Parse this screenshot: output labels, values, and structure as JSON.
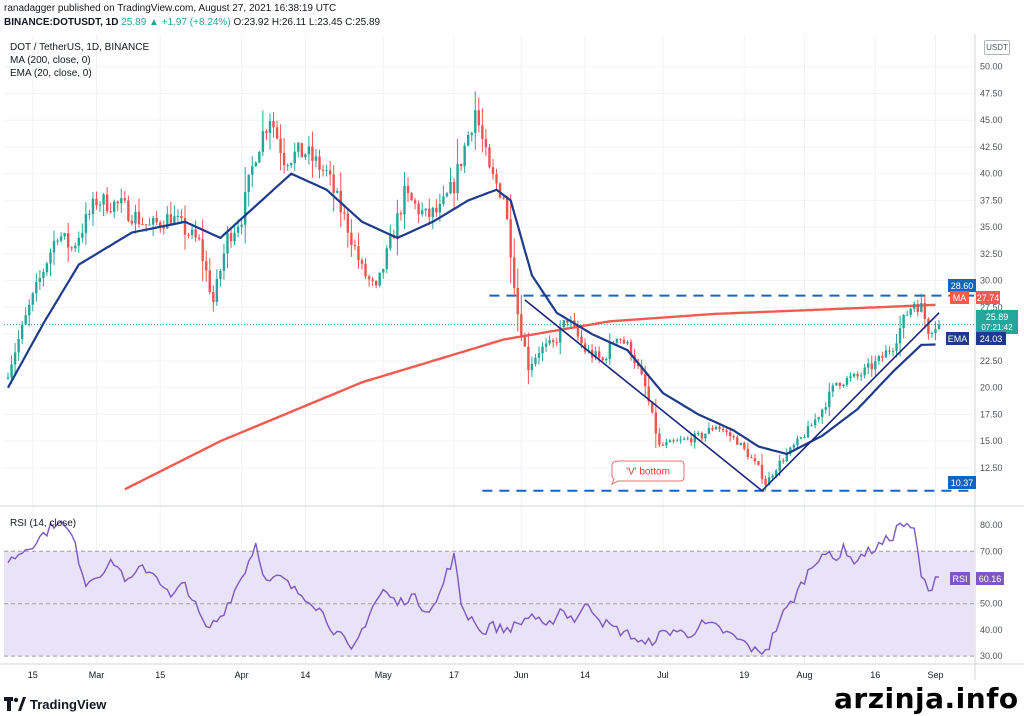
{
  "header": {
    "published_by": "ranadagger published on TradingView.com, August 27, 2021 16:38:19 UTC",
    "symbol": "BINANCE:DOTUSDT, 1D",
    "last": "25.89",
    "change": "▲ +1.97 (+8.24%)",
    "open": "O:23.92",
    "high": "H:26.11",
    "low": "L:23.45",
    "close": "C:25.89"
  },
  "legend": {
    "title": "DOT / TetherUS, 1D, BINANCE",
    "ma": "MA (200, close, 0)",
    "ema": "EMA (20, close, 0)",
    "rsi": "RSI (14, close)"
  },
  "currency": "USDT",
  "annotation": "'V' bottom",
  "price_labels": {
    "resistance": "28.60",
    "ma_tag": "MA",
    "ma_value": "27.74",
    "last_price": "25.89",
    "countdown": "07:21:42",
    "ema_tag": "EMA",
    "ema_value": "24.03",
    "support": "10.37",
    "rsi_tag": "RSI",
    "rsi_value": "60.16"
  },
  "footer": {
    "brand": "TradingView",
    "watermark": "arzinja.info"
  },
  "colors": {
    "up": "#26a69a",
    "down": "#ef5350",
    "ma": "#f05b4f",
    "ema": "#1e3a8a",
    "line_blue": "#1a237e",
    "level_blue": "#1565c0",
    "rsi": "#7e57c2",
    "rsi_band": "#e8e3f6"
  },
  "chart_data": [
    {
      "type": "candlestick",
      "title": "DOT / TetherUS, 1D, BINANCE",
      "x_ticks": [
        "15",
        "Mar",
        "15",
        "Apr",
        "14",
        "May",
        "17",
        "Jun",
        "14",
        "Jul",
        "19",
        "Aug",
        "16",
        "Sep"
      ],
      "y_ticks": [
        12.5,
        15.0,
        17.5,
        20.0,
        22.5,
        25.0,
        27.5,
        30.0,
        32.5,
        35.0,
        37.5,
        40.0,
        42.5,
        45.0,
        47.5,
        50.0
      ],
      "y_range": [
        9.5,
        51.0
      ],
      "levels": {
        "resistance": 28.6,
        "support": 10.37
      },
      "waypoints_close": [
        [
          0,
          21.5
        ],
        [
          6,
          27.5
        ],
        [
          14,
          34.5
        ],
        [
          18,
          33.0
        ],
        [
          25,
          37.5
        ],
        [
          32,
          37.0
        ],
        [
          40,
          35.0
        ],
        [
          46,
          36.0
        ],
        [
          54,
          33.5
        ],
        [
          58,
          28.0
        ],
        [
          62,
          34.0
        ],
        [
          66,
          36.0
        ],
        [
          70,
          42.0
        ],
        [
          74,
          45.5
        ],
        [
          78,
          41.5
        ],
        [
          84,
          42.0
        ],
        [
          90,
          40.0
        ],
        [
          96,
          35.0
        ],
        [
          100,
          31.0
        ],
        [
          104,
          29.0
        ],
        [
          108,
          33.5
        ],
        [
          112,
          38.0
        ],
        [
          118,
          36.0
        ],
        [
          122,
          36.5
        ],
        [
          126,
          39.0
        ],
        [
          132,
          46.0
        ],
        [
          136,
          40.0
        ],
        [
          140,
          38.0
        ],
        [
          142,
          33.0
        ],
        [
          144,
          27.0
        ],
        [
          147,
          22.0
        ],
        [
          150,
          23.5
        ],
        [
          154,
          24.0
        ],
        [
          158,
          26.5
        ],
        [
          163,
          23.5
        ],
        [
          168,
          22.5
        ],
        [
          172,
          25.0
        ],
        [
          176,
          23.5
        ],
        [
          180,
          20.0
        ],
        [
          184,
          14.5
        ],
        [
          190,
          15.0
        ],
        [
          196,
          15.5
        ],
        [
          200,
          16.5
        ],
        [
          206,
          15.0
        ],
        [
          212,
          12.5
        ],
        [
          214,
          11.0
        ],
        [
          218,
          13.0
        ],
        [
          222,
          14.5
        ],
        [
          226,
          16.0
        ],
        [
          230,
          18.0
        ],
        [
          234,
          20.5
        ],
        [
          240,
          21.0
        ],
        [
          246,
          22.5
        ],
        [
          250,
          24.0
        ],
        [
          254,
          27.0
        ],
        [
          256,
          28.0
        ],
        [
          258,
          27.5
        ],
        [
          260,
          25.5
        ],
        [
          262,
          25.89
        ]
      ],
      "ma200_waypoints": [
        [
          33,
          10.5
        ],
        [
          60,
          15.0
        ],
        [
          100,
          20.5
        ],
        [
          140,
          24.5
        ],
        [
          170,
          26.2
        ],
        [
          200,
          26.9
        ],
        [
          230,
          27.3
        ],
        [
          262,
          27.74
        ]
      ],
      "ema20_waypoints": [
        [
          0,
          20.0
        ],
        [
          10,
          26.0
        ],
        [
          20,
          31.5
        ],
        [
          35,
          34.5
        ],
        [
          50,
          35.5
        ],
        [
          60,
          34.0
        ],
        [
          70,
          37.0
        ],
        [
          80,
          40.0
        ],
        [
          90,
          38.5
        ],
        [
          100,
          35.5
        ],
        [
          110,
          34.0
        ],
        [
          120,
          35.5
        ],
        [
          130,
          37.5
        ],
        [
          138,
          38.5
        ],
        [
          142,
          37.5
        ],
        [
          148,
          30.5
        ],
        [
          155,
          27.0
        ],
        [
          165,
          25.0
        ],
        [
          175,
          23.5
        ],
        [
          185,
          19.5
        ],
        [
          195,
          17.5
        ],
        [
          205,
          16.0
        ],
        [
          212,
          14.5
        ],
        [
          220,
          13.8
        ],
        [
          230,
          15.5
        ],
        [
          240,
          18.0
        ],
        [
          250,
          21.5
        ],
        [
          258,
          24.0
        ],
        [
          262,
          24.03
        ]
      ],
      "pattern_lines": [
        {
          "from": [
            146,
            28.2
          ],
          "to": [
            213,
            10.37
          ]
        },
        {
          "from": [
            213,
            10.37
          ],
          "to": [
            263,
            27.0
          ]
        }
      ]
    },
    {
      "type": "line",
      "title": "RSI (14, close)",
      "y_ticks": [
        30.0,
        40.0,
        50.0,
        60.0,
        70.0,
        80.0
      ],
      "y_range": [
        27,
        85
      ],
      "band": [
        30,
        70
      ],
      "waypoints": [
        [
          0,
          66
        ],
        [
          4,
          70
        ],
        [
          8,
          74
        ],
        [
          12,
          79
        ],
        [
          14,
          82
        ],
        [
          18,
          76
        ],
        [
          22,
          58
        ],
        [
          26,
          62
        ],
        [
          30,
          66
        ],
        [
          34,
          58
        ],
        [
          38,
          64
        ],
        [
          42,
          61
        ],
        [
          46,
          52
        ],
        [
          50,
          58
        ],
        [
          54,
          46
        ],
        [
          56,
          40
        ],
        [
          60,
          45
        ],
        [
          64,
          55
        ],
        [
          67,
          63
        ],
        [
          70,
          73
        ],
        [
          73,
          58
        ],
        [
          77,
          60
        ],
        [
          81,
          55
        ],
        [
          85,
          52
        ],
        [
          88,
          48
        ],
        [
          92,
          40
        ],
        [
          95,
          36
        ],
        [
          97,
          31
        ],
        [
          100,
          40
        ],
        [
          103,
          49
        ],
        [
          106,
          55
        ],
        [
          110,
          50
        ],
        [
          114,
          53
        ],
        [
          118,
          48
        ],
        [
          121,
          50
        ],
        [
          124,
          62
        ],
        [
          126,
          68
        ],
        [
          128,
          50
        ],
        [
          130,
          45
        ],
        [
          132,
          44
        ],
        [
          134,
          38
        ],
        [
          136,
          42
        ],
        [
          140,
          40
        ],
        [
          144,
          42
        ],
        [
          148,
          46
        ],
        [
          152,
          40
        ],
        [
          156,
          48
        ],
        [
          160,
          44
        ],
        [
          164,
          50
        ],
        [
          168,
          43
        ],
        [
          172,
          40
        ],
        [
          176,
          38
        ],
        [
          180,
          34
        ],
        [
          184,
          38
        ],
        [
          188,
          40
        ],
        [
          192,
          38
        ],
        [
          196,
          42
        ],
        [
          200,
          41
        ],
        [
          204,
          38
        ],
        [
          208,
          35
        ],
        [
          212,
          31
        ],
        [
          215,
          34
        ],
        [
          218,
          44
        ],
        [
          222,
          52
        ],
        [
          226,
          62
        ],
        [
          230,
          70
        ],
        [
          234,
          66
        ],
        [
          236,
          73
        ],
        [
          238,
          66
        ],
        [
          242,
          69
        ],
        [
          246,
          72
        ],
        [
          250,
          76
        ],
        [
          252,
          81
        ],
        [
          254,
          79
        ],
        [
          256,
          78
        ],
        [
          258,
          61
        ],
        [
          260,
          54
        ],
        [
          262,
          60.16
        ]
      ]
    }
  ]
}
